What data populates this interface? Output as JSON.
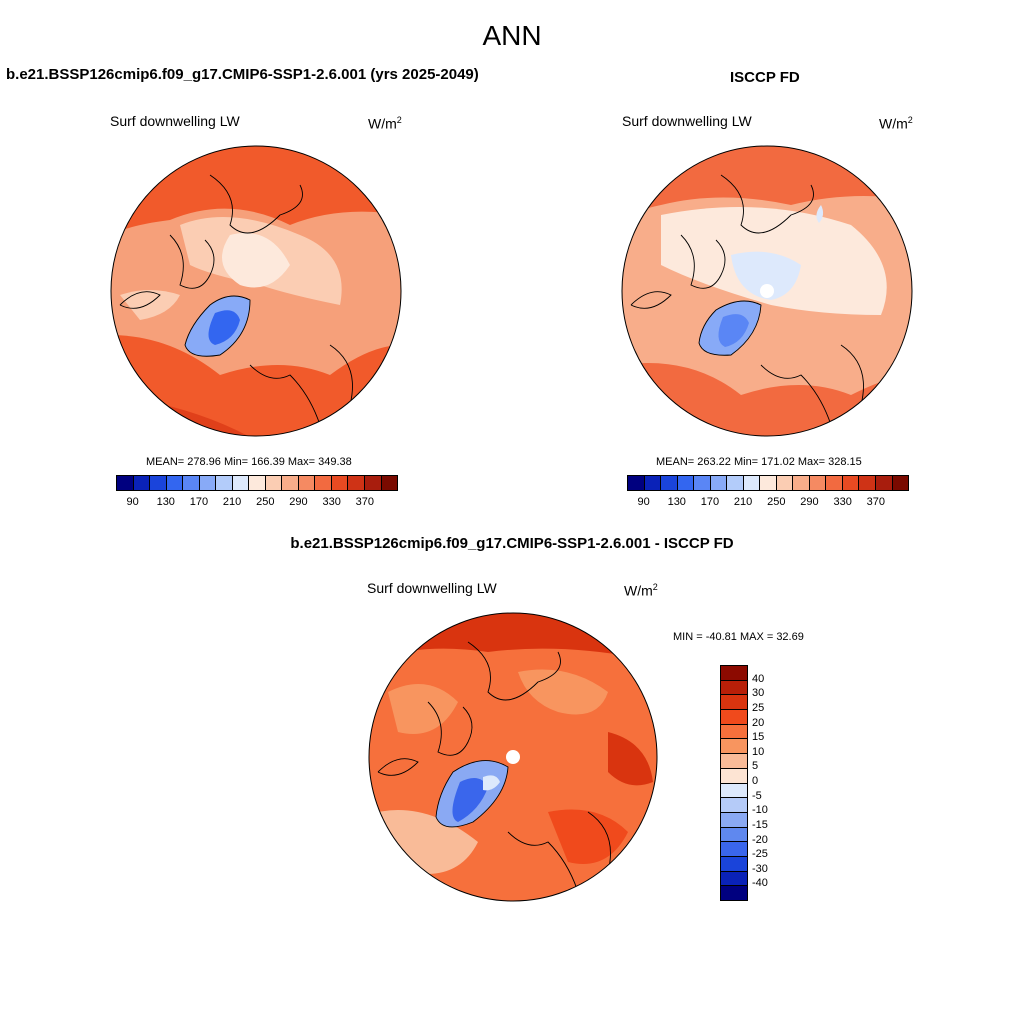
{
  "title": "ANN",
  "panels": {
    "model": {
      "title": "b.e21.BSSP126cmip6.f09_g17.CMIP6-SSP1-2.6.001 (yrs 2025-2049)",
      "var_label": "Surf downwelling LW",
      "units_base": "W/m",
      "units_exp": "2",
      "stats": "MEAN= 278.96  Min= 166.39  Max= 349.38"
    },
    "obs": {
      "title": "ISCCP FD",
      "var_label": "Surf downwelling LW",
      "units_base": "W/m",
      "units_exp": "2",
      "stats": "MEAN= 263.22  Min= 171.02  Max= 328.15"
    },
    "diff": {
      "title": "b.e21.BSSP126cmip6.f09_g17.CMIP6-SSP1-2.6.001 - ISCCP FD",
      "var_label": "Surf downwelling LW",
      "units_base": "W/m",
      "units_exp": "2",
      "stats": "MIN = -40.81 MAX =  32.69"
    }
  },
  "abs_colorbar": {
    "colors": [
      "#00007f",
      "#0a22b8",
      "#1a44db",
      "#3366f0",
      "#5a86f5",
      "#88aaf7",
      "#b3ccfa",
      "#dde9fc",
      "#fde9dc",
      "#fbcdb3",
      "#f8ad8a",
      "#f58a62",
      "#f26a40",
      "#e84a22",
      "#cf3316",
      "#a81d0d",
      "#7a0a00"
    ],
    "ticks": [
      "90",
      "130",
      "170",
      "210",
      "250",
      "290",
      "330",
      "370"
    ]
  },
  "diff_colorbar": {
    "colors_top_to_bottom": [
      "#8c0a00",
      "#b81f08",
      "#d9340f",
      "#f04a1c",
      "#f6703c",
      "#f8955f",
      "#f9bb98",
      "#fde4d3",
      "#dde9fc",
      "#b5cbf8",
      "#8aa9f3",
      "#5f88ef",
      "#3a66ec",
      "#1a44da",
      "#0a22b8",
      "#00007f"
    ],
    "ticks_top_to_bottom": [
      "40",
      "30",
      "25",
      "20",
      "15",
      "10",
      "5",
      "0",
      "-5",
      "-10",
      "-15",
      "-20",
      "-25",
      "-30",
      "-40"
    ]
  },
  "legend_colors": {
    "ocean_warm": "#f15a2b",
    "mid": "#f6a07a",
    "pale": "#fde4d3",
    "ice_cold": "#4d7be8",
    "ice_blue": "#9fbdf5",
    "coast": "#000000"
  }
}
